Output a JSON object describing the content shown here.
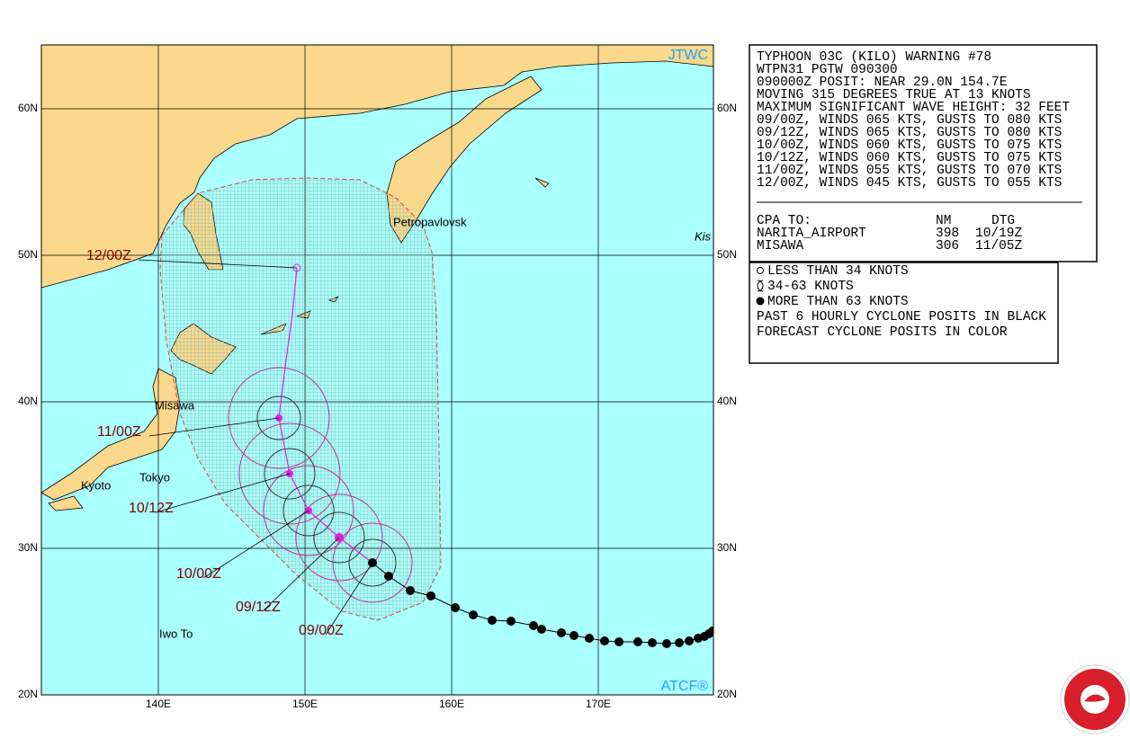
{
  "header": {
    "lines": [
      "TYPHOON 03C (KILO) WARNING #78",
      "WTPN31 PGTW 090300",
      "090000Z POSIT: NEAR 29.0N 154.7E",
      "MOVING 315 DEGREES TRUE AT 13 KNOTS",
      "MAXIMUM SIGNIFICANT WAVE HEIGHT: 32 FEET",
      "09/00Z, WINDS 065 KTS, GUSTS TO 080 KTS",
      "09/12Z, WINDS 065 KTS, GUSTS TO 080 KTS",
      "10/00Z, WINDS 060 KTS, GUSTS TO 075 KTS",
      "10/12Z, WINDS 060 KTS, GUSTS TO 075 KTS",
      "11/00Z, WINDS 055 KTS, GUSTS TO 070 KTS",
      "12/00Z, WINDS 045 KTS, GUSTS TO 055 KTS"
    ],
    "cpa_header": {
      "label": "CPA TO:",
      "nm": "NM",
      "dtg": "DTG"
    },
    "cpa_rows": [
      {
        "name": "NARITA_AIRPORT",
        "nm": 398,
        "dtg": "10/19Z"
      },
      {
        "name": "MISAWA",
        "nm": 306,
        "dtg": "11/05Z"
      }
    ]
  },
  "legend": [
    "LESS THAN 34 KNOTS",
    "34-63 KNOTS",
    "MORE THAN 63 KNOTS",
    "PAST 6 HOURLY CYCLONE POSITS IN BLACK",
    "FORECAST CYCLONE POSITS IN COLOR"
  ],
  "map": {
    "credit_top": "JTWC",
    "credit_bottom": "ATCF®",
    "lat_labels": [
      {
        "value": 60,
        "label": "60N"
      },
      {
        "value": 50,
        "label": "50N"
      },
      {
        "value": 40,
        "label": "40N"
      },
      {
        "value": 30,
        "label": "30N"
      },
      {
        "value": 20,
        "label": "20N"
      }
    ],
    "lon_labels": [
      {
        "value": 140,
        "label": "140E"
      },
      {
        "value": 150,
        "label": "150E"
      },
      {
        "value": 160,
        "label": "160E"
      },
      {
        "value": 170,
        "label": "170E"
      }
    ],
    "places": [
      "Petropavlovsk",
      "Kis",
      "Misawa",
      "Tokyo",
      "Kyoto",
      "Iwo To"
    ],
    "forecast_labels": [
      "12/00Z",
      "11/00Z",
      "10/12Z",
      "10/00Z",
      "09/12Z",
      "09/00Z"
    ]
  }
}
